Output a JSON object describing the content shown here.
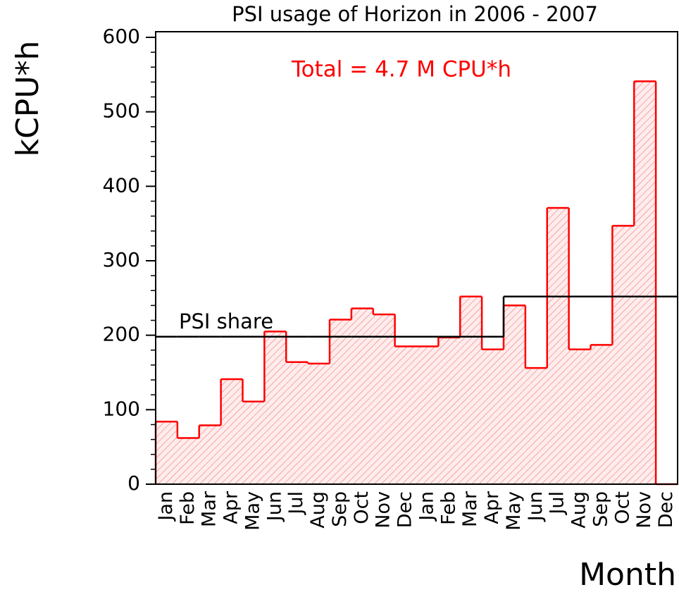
{
  "chart_data": {
    "type": "bar",
    "title": "PSI usage of Horizon in 2006 - 2007",
    "x_label": "Month",
    "y_label": "kCPU*h",
    "annotation": "Total = 4.7 M CPU*h",
    "annotation_color": "#ff0000",
    "categories": [
      "Jan",
      "Feb",
      "Mar",
      "Apr",
      "May",
      "Jun",
      "Jul",
      "Aug",
      "Sep",
      "Oct",
      "Nov",
      "Dec",
      "Jan",
      "Feb",
      "Mar",
      "Apr",
      "May",
      "Jun",
      "Jul",
      "Aug",
      "Sep",
      "Oct",
      "Nov",
      "Dec"
    ],
    "values": [
      84,
      62,
      79,
      141,
      111,
      205,
      164,
      162,
      221,
      236,
      228,
      185,
      185,
      197,
      252,
      181,
      240,
      156,
      371,
      181,
      187,
      347,
      541,
      0
    ],
    "color": "#ff0000",
    "hatched": true,
    "share": {
      "label": "PSI share",
      "color": "#000000",
      "values": [
        198,
        198,
        198,
        198,
        198,
        198,
        198,
        198,
        198,
        198,
        198,
        198,
        198,
        198,
        198,
        198,
        252,
        252,
        252,
        252,
        252,
        252,
        252,
        252
      ]
    },
    "ylim": [
      0,
      600
    ],
    "yticks": [
      0,
      100,
      200,
      300,
      400,
      500,
      600
    ]
  }
}
